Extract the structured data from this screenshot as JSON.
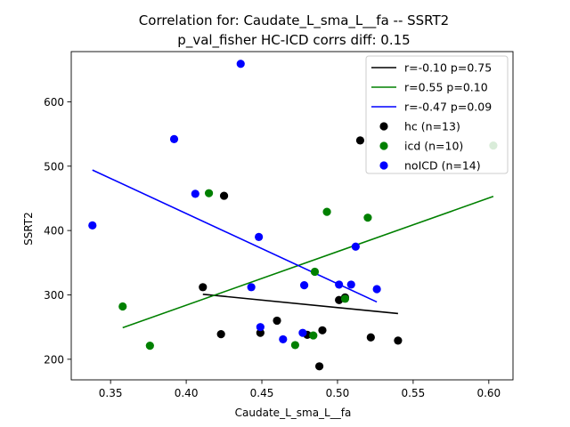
{
  "chart_data": {
    "type": "scatter",
    "title": "Correlation for: Caudate_L_sma_L__fa -- SSRT2",
    "subtitle": "p_val_fisher HC-ICD corrs diff: 0.15",
    "xlabel": "Caudate_L_sma_L__fa",
    "ylabel": "SSRT2",
    "xlim": [
      0.324,
      0.616
    ],
    "ylim": [
      168,
      678
    ],
    "xticks": [
      0.35,
      0.4,
      0.45,
      0.5,
      0.55,
      0.6
    ],
    "xtick_labels": [
      "0.35",
      "0.40",
      "0.45",
      "0.50",
      "0.55",
      "0.60"
    ],
    "yticks": [
      200,
      300,
      400,
      500,
      600
    ],
    "ytick_labels": [
      "200",
      "300",
      "400",
      "500",
      "600"
    ],
    "grid": false,
    "legend_position": "upper-right",
    "lines": [
      {
        "label": "r=-0.10 p=0.75",
        "color": "#000000",
        "x": [
          0.411,
          0.54
        ],
        "y": [
          301,
          271
        ]
      },
      {
        "label": "r=0.55 p=0.10",
        "color": "#008000",
        "x": [
          0.358,
          0.603
        ],
        "y": [
          249,
          453
        ]
      },
      {
        "label": "r=-0.47 p=0.09",
        "color": "#0000ff",
        "x": [
          0.338,
          0.526
        ],
        "y": [
          494,
          289
        ]
      }
    ],
    "series": [
      {
        "name": "hc (n=13)",
        "color": "#000000",
        "points": [
          [
            0.411,
            312
          ],
          [
            0.423,
            239
          ],
          [
            0.425,
            454
          ],
          [
            0.449,
            241
          ],
          [
            0.46,
            260
          ],
          [
            0.48,
            238
          ],
          [
            0.488,
            189
          ],
          [
            0.49,
            245
          ],
          [
            0.501,
            292
          ],
          [
            0.515,
            540
          ],
          [
            0.522,
            234
          ],
          [
            0.54,
            229
          ],
          [
            0.505,
            296
          ]
        ]
      },
      {
        "name": "icd (n=10)",
        "color": "#008000",
        "points": [
          [
            0.358,
            282
          ],
          [
            0.376,
            221
          ],
          [
            0.415,
            458
          ],
          [
            0.472,
            222
          ],
          [
            0.484,
            237
          ],
          [
            0.485,
            336
          ],
          [
            0.493,
            429
          ],
          [
            0.505,
            294
          ],
          [
            0.52,
            420
          ],
          [
            0.603,
            532
          ]
        ]
      },
      {
        "name": "noICD (n=14)",
        "color": "#0000ff",
        "points": [
          [
            0.338,
            408
          ],
          [
            0.392,
            542
          ],
          [
            0.406,
            457
          ],
          [
            0.436,
            659
          ],
          [
            0.443,
            312
          ],
          [
            0.448,
            390
          ],
          [
            0.449,
            250
          ],
          [
            0.464,
            231
          ],
          [
            0.477,
            241
          ],
          [
            0.478,
            315
          ],
          [
            0.501,
            316
          ],
          [
            0.509,
            316
          ],
          [
            0.512,
            375
          ],
          [
            0.526,
            309
          ]
        ]
      }
    ]
  }
}
